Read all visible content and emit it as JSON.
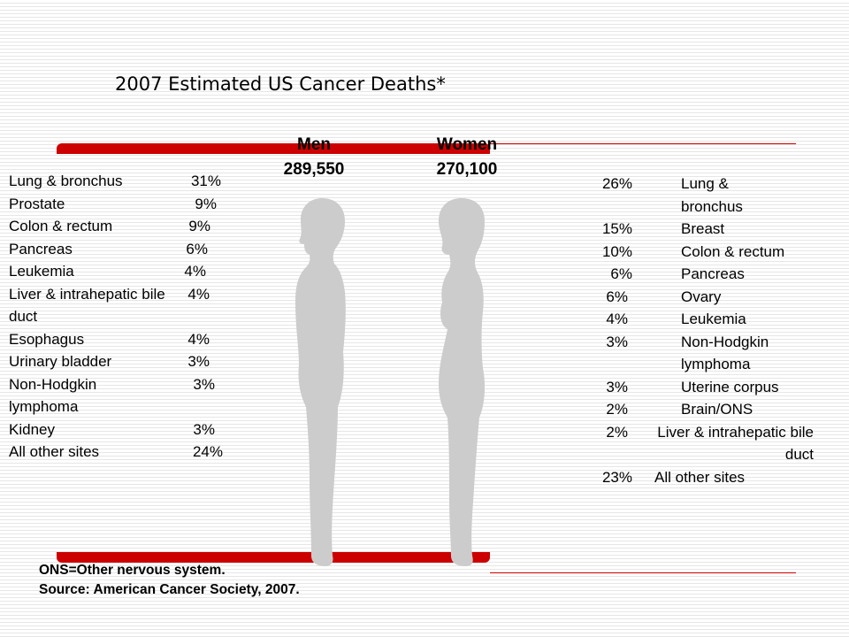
{
  "title": "2007 Estimated US Cancer Deaths*",
  "men": {
    "label": "Men",
    "total": "289,550",
    "sites": [
      {
        "site": "Lung & bronchus",
        "pct": "31%"
      },
      {
        "site": "Prostate",
        "pct": "9%"
      },
      {
        "site": "Colon & rectum",
        "pct": "9%"
      },
      {
        "site": "Pancreas",
        "pct": "6%"
      },
      {
        "site": "Leukemia",
        "pct": "4%"
      },
      {
        "site": "Liver & intrahepatic bile duct",
        "pct": "4%"
      },
      {
        "site": "Esophagus",
        "pct": "4%"
      },
      {
        "site": "Urinary bladder",
        "pct": "3%"
      },
      {
        "site": "Non-Hodgkin lymphoma",
        "pct": "3%"
      },
      {
        "site": "Kidney",
        "pct": "3%"
      },
      {
        "site": "All other sites",
        "pct": "24%"
      }
    ]
  },
  "women": {
    "label": "Women",
    "total": "270,100",
    "sites": [
      {
        "pct": "26%",
        "site": "Lung & bronchus"
      },
      {
        "pct": "15%",
        "site": "Breast"
      },
      {
        "pct": "10%",
        "site": "Colon & rectum"
      },
      {
        "pct": "6%",
        "site": "Pancreas"
      },
      {
        "pct": "6%",
        "site": "Ovary"
      },
      {
        "pct": "4%",
        "site": "Leukemia"
      },
      {
        "pct": "3%",
        "site": "Non-Hodgkin lymphoma"
      },
      {
        "pct": "3%",
        "site": "Uterine corpus"
      },
      {
        "pct": "2%",
        "site": "Brain/ONS"
      },
      {
        "pct": "2%",
        "site": "Liver & intrahepatic bile duct"
      },
      {
        "pct": "23%",
        "site": "All other sites"
      }
    ]
  },
  "footnote": {
    "line1": "ONS=Other nervous system.",
    "line2": "Source: American Cancer Society, 2007."
  },
  "colors": {
    "accent": "#cc0000",
    "figure": "#cccccc"
  }
}
